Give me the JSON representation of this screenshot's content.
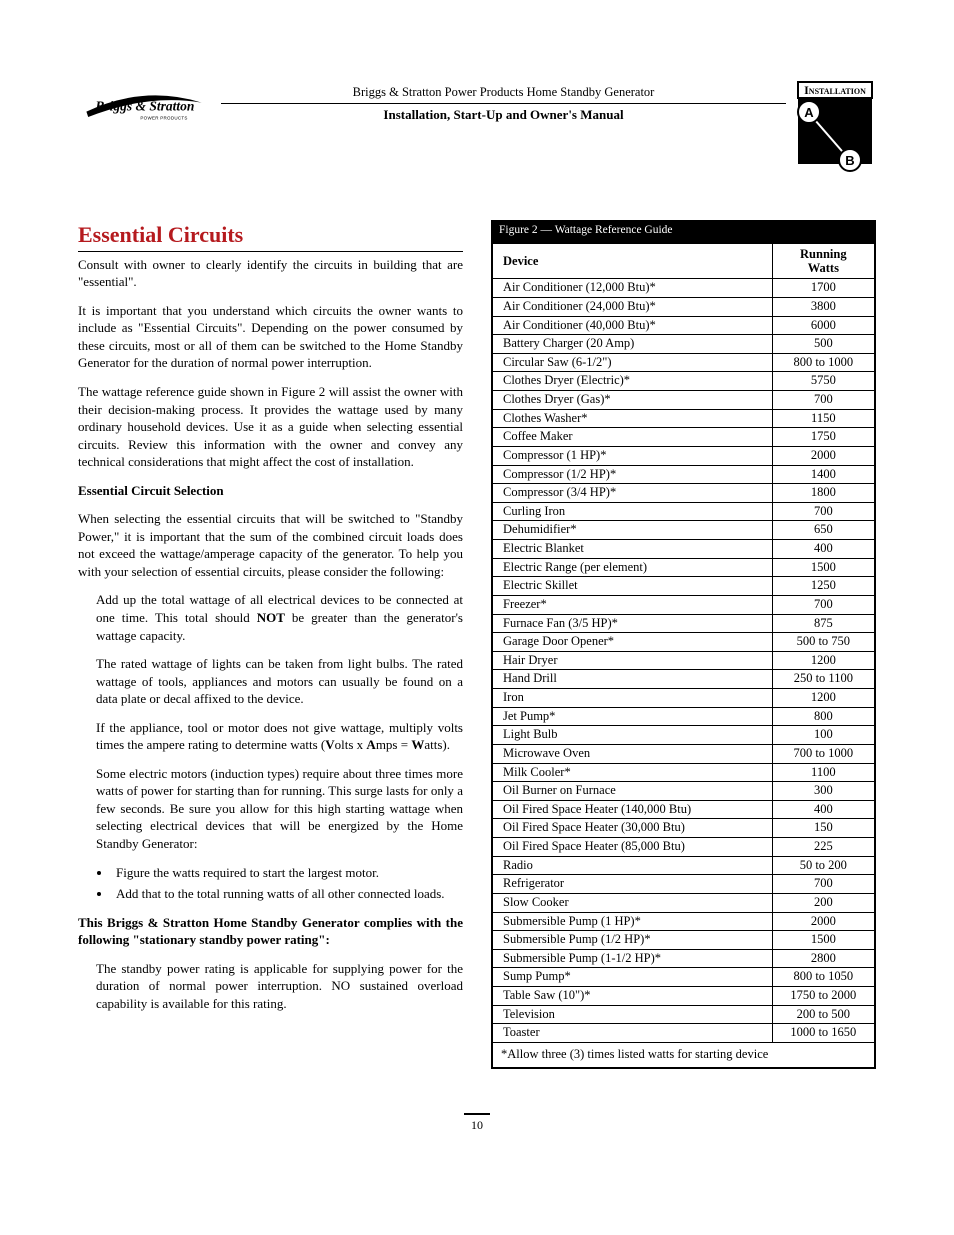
{
  "header": {
    "product_line": "Briggs & Stratton Power Products Home Standby Generator",
    "manual_title": "Installation, Start-Up and Owner's Manual",
    "badge_label": "Installation",
    "logo_text_top": "Briggs & Stratton",
    "logo_text_sub": "POWER PRODUCTS"
  },
  "section": {
    "title": "Essential Circuits",
    "intro_p1": "Consult with owner to clearly identify the circuits in building that are \"essential\".",
    "intro_p2": "It is important that you understand which circuits the owner wants to include as \"Essential Circuits\". Depending on the power consumed by these circuits, most or all of them can be switched to the Home Standby Generator for the duration of normal power interruption.",
    "intro_p3": "The wattage reference guide shown in Figure 2 will assist the owner with their decision-making process. It provides the wattage used by many ordinary household devices. Use it as a guide when selecting essential circuits. Review this information with the owner and convey any technical considerations that might affect the cost of installation.",
    "sub_heading": "Essential Circuit Selection",
    "sub_p1": "When selecting the essential circuits that will be switched to \"Standby Power,\" it is important that the sum of the combined circuit loads does not exceed the wattage/amperage capacity of the generator. To help you with your selection of essential circuits, please consider the following:",
    "adv1_pre": "Add up the total wattage of all electrical devices to be connected at one time. This total should ",
    "adv1_bold": "NOT",
    "adv1_post": " be greater than the generator's wattage capacity.",
    "adv2": "The rated wattage of lights can be taken from light bulbs. The rated wattage of tools, appliances and motors can usually be found on a data plate or decal affixed to the device.",
    "adv3_pre": "If the appliance, tool or motor does not give wattage, multiply volts times the ampere rating to determine watts (",
    "adv3_v": "V",
    "adv3_mid1": "olts x ",
    "adv3_a": "A",
    "adv3_mid2": "mps = ",
    "adv3_w": "W",
    "adv3_post": "atts).",
    "adv4": "Some electric motors (induction types) require about three times more watts of power for starting than for running. This surge lasts for only a few seconds. Be sure you allow for this high starting wattage when selecting electrical devices that will be energized by the Home Standby Generator:",
    "bullet1": "Figure the watts required to start the largest motor.",
    "bullet2": "Add that to the total running watts of all other connected loads.",
    "compliance": "This Briggs & Stratton Home Standby Generator complies with the following \"stationary standby power rating\":",
    "compliance_p": "The standby power rating is applicable for supplying power for the duration of normal power interruption. NO sustained overload capability is available for this rating."
  },
  "table": {
    "caption": "Figure 2 — Wattage Reference Guide",
    "col_device": "Device",
    "col_watts_l1": "Running",
    "col_watts_l2": "Watts",
    "rows": [
      {
        "d": "Air Conditioner (12,000 Btu)*",
        "w": "1700"
      },
      {
        "d": "Air Conditioner (24,000 Btu)*",
        "w": "3800"
      },
      {
        "d": "Air Conditioner (40,000 Btu)*",
        "w": "6000"
      },
      {
        "d": "Battery Charger (20 Amp)",
        "w": "500"
      },
      {
        "d": "Circular Saw (6-1/2\")",
        "w": "800 to 1000"
      },
      {
        "d": "Clothes Dryer (Electric)*",
        "w": "5750"
      },
      {
        "d": "Clothes Dryer (Gas)*",
        "w": "700"
      },
      {
        "d": "Clothes Washer*",
        "w": "1150"
      },
      {
        "d": "Coffee Maker",
        "w": "1750"
      },
      {
        "d": "Compressor (1 HP)*",
        "w": "2000"
      },
      {
        "d": "Compressor (1/2 HP)*",
        "w": "1400"
      },
      {
        "d": "Compressor (3/4 HP)*",
        "w": "1800"
      },
      {
        "d": "Curling Iron",
        "w": "700"
      },
      {
        "d": "Dehumidifier*",
        "w": "650"
      },
      {
        "d": "Electric Blanket",
        "w": "400"
      },
      {
        "d": "Electric Range (per element)",
        "w": "1500"
      },
      {
        "d": "Electric Skillet",
        "w": "1250"
      },
      {
        "d": "Freezer*",
        "w": "700"
      },
      {
        "d": "Furnace Fan (3/5 HP)*",
        "w": "875"
      },
      {
        "d": "Garage Door Opener*",
        "w": "500 to 750"
      },
      {
        "d": "Hair Dryer",
        "w": "1200"
      },
      {
        "d": "Hand Drill",
        "w": "250 to 1100"
      },
      {
        "d": "Iron",
        "w": "1200"
      },
      {
        "d": "Jet Pump*",
        "w": "800"
      },
      {
        "d": "Light Bulb",
        "w": "100"
      },
      {
        "d": "Microwave Oven",
        "w": "700 to 1000"
      },
      {
        "d": "Milk Cooler*",
        "w": "1100"
      },
      {
        "d": "Oil Burner on Furnace",
        "w": "300"
      },
      {
        "d": "Oil Fired Space Heater (140,000 Btu)",
        "w": "400"
      },
      {
        "d": "Oil Fired Space Heater (30,000 Btu)",
        "w": "150"
      },
      {
        "d": "Oil Fired Space Heater (85,000 Btu)",
        "w": "225"
      },
      {
        "d": "Radio",
        "w": "50 to 200"
      },
      {
        "d": "Refrigerator",
        "w": "700"
      },
      {
        "d": "Slow Cooker",
        "w": "200"
      },
      {
        "d": "Submersible Pump (1 HP)*",
        "w": "2000"
      },
      {
        "d": "Submersible Pump (1/2 HP)*",
        "w": "1500"
      },
      {
        "d": "Submersible Pump (1-1/2 HP)*",
        "w": "2800"
      },
      {
        "d": "Sump Pump*",
        "w": "800 to 1050"
      },
      {
        "d": "Table Saw (10\")*",
        "w": "1750 to 2000"
      },
      {
        "d": "Television",
        "w": "200 to 500"
      },
      {
        "d": "Toaster",
        "w": "1000 to 1650"
      }
    ],
    "footnote": "*Allow three (3) times listed watts for starting device"
  },
  "page_number": "10",
  "colors": {
    "heading": "#b51a1e",
    "rule": "#000000",
    "table_header_bg": "#000000"
  }
}
